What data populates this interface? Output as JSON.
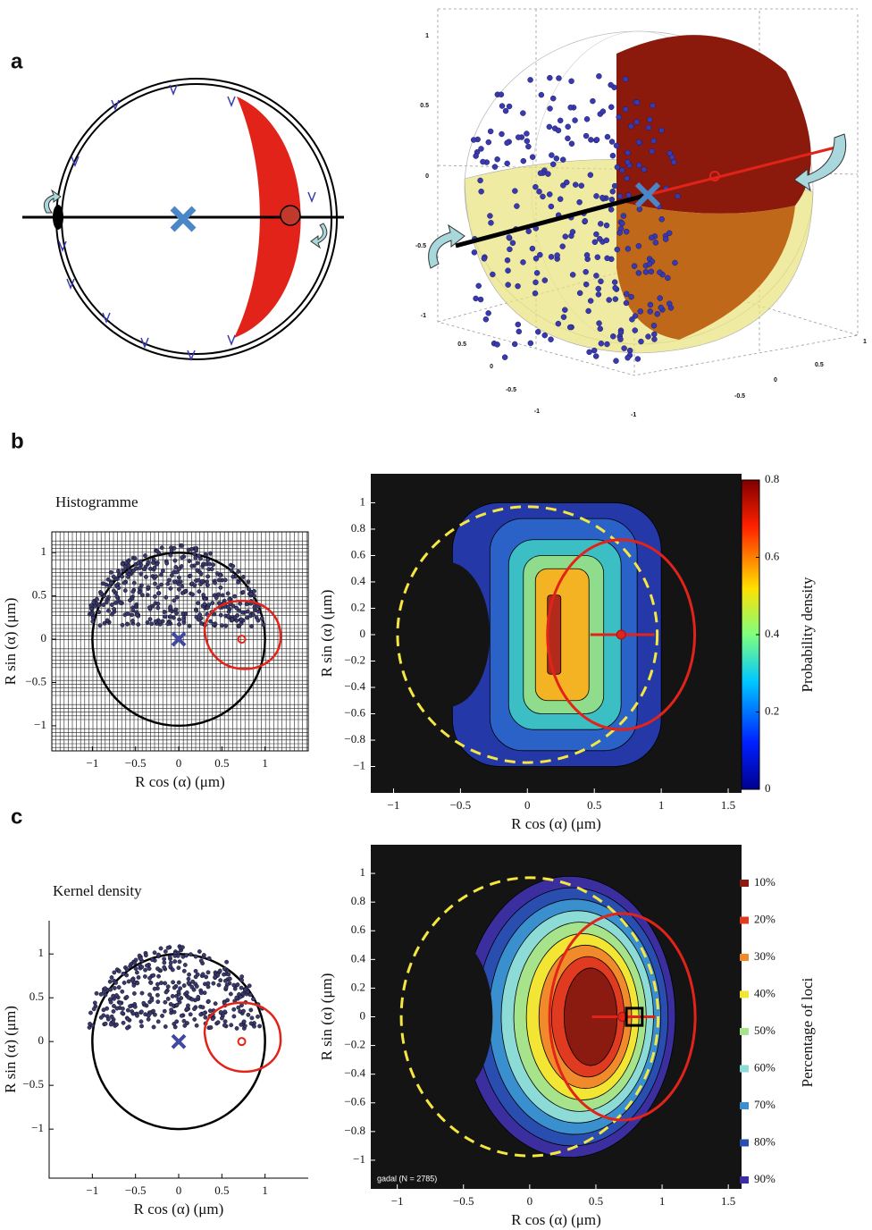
{
  "panels": {
    "a": {
      "label": "a",
      "plot3d": {
        "zticks": [
          1,
          0.5,
          0,
          -0.5,
          -1
        ],
        "yticks": [
          0.5,
          0,
          -0.5,
          -1
        ],
        "xticks": [
          1,
          0.5,
          0,
          -0.5,
          -1
        ]
      }
    },
    "b": {
      "label": "b",
      "left": {
        "title": "Histogramme",
        "xlabel": "R cos (α) (μm)",
        "ylabel": "R sin (α) (μm)",
        "xlim": [
          -1.47,
          1.5
        ],
        "ylim": [
          -1.29,
          1.24
        ],
        "xticks": [
          {
            "value": -1,
            "label": "−1"
          },
          {
            "value": -0.5,
            "label": "−0.5"
          },
          0,
          0.5,
          1
        ],
        "yticks": [
          {
            "value": -1,
            "label": "−1"
          },
          {
            "value": -0.5,
            "label": "−0.5"
          },
          0,
          0.5,
          1
        ]
      },
      "right": {
        "xlabel": "R cos (α) (μm)",
        "ylabel": "R sin (α) (μm)",
        "xlim": [
          -1.17,
          1.6
        ],
        "ylim": [
          -1.2,
          1.22
        ],
        "xticks": [
          {
            "value": -1,
            "label": "−1"
          },
          {
            "value": -0.5,
            "label": "−0.5"
          },
          0,
          0.5,
          1,
          1.5
        ],
        "yticks": [
          {
            "value": -1,
            "label": "−1"
          },
          {
            "value": -0.8,
            "label": "−0.8"
          },
          {
            "value": -0.6,
            "label": "−0.6"
          },
          {
            "value": -0.4,
            "label": "−0.4"
          },
          {
            "value": -0.2,
            "label": "−0.2"
          },
          0,
          0.2,
          0.4,
          0.6,
          0.8,
          1
        ],
        "colorbar": {
          "label": "Probability density",
          "lim": [
            0,
            0.8
          ],
          "ticks": [
            0,
            0.2,
            0.4,
            0.6,
            0.8
          ]
        }
      }
    },
    "c": {
      "label": "c",
      "left": {
        "title": "Kernel density",
        "xlabel": "R cos (α) (μm)",
        "ylabel": "R sin (α) (μm)",
        "xlim": [
          -1.5,
          1.5
        ],
        "ylim": [
          -1.56,
          1.38
        ],
        "xticks": [
          {
            "value": -1,
            "label": "−1"
          },
          {
            "value": -0.5,
            "label": "−0.5"
          },
          0,
          0.5,
          1
        ],
        "yticks": [
          {
            "value": -1,
            "label": "−1"
          },
          {
            "value": -0.5,
            "label": "−0.5"
          },
          0,
          0.5,
          1
        ]
      },
      "right": {
        "xlabel": "R cos (α) (μm)",
        "ylabel": "R sin (α) (μm)",
        "annotation": "gadal (N = 2785)",
        "xlim": [
          -1.2,
          1.6
        ],
        "ylim": [
          -1.2,
          1.2
        ],
        "xticks": [
          {
            "value": -1,
            "label": "−1"
          },
          {
            "value": -0.5,
            "label": "−0.5"
          },
          0,
          0.5,
          1,
          1.5
        ],
        "yticks": [
          {
            "value": -1,
            "label": "−1"
          },
          {
            "value": -0.8,
            "label": "−0.8"
          },
          {
            "value": -0.6,
            "label": "−0.6"
          },
          {
            "value": -0.4,
            "label": "−0.4"
          },
          {
            "value": -0.2,
            "label": "−0.2"
          },
          0,
          0.2,
          0.4,
          0.6,
          0.8,
          1
        ],
        "legend": {
          "title": "Percentage of loci",
          "items": [
            {
              "label": "10%",
              "color": "#8b1a10"
            },
            {
              "label": "20%",
              "color": "#e03a20"
            },
            {
              "label": "30%",
              "color": "#f08a2a"
            },
            {
              "label": "40%",
              "color": "#f2e534"
            },
            {
              "label": "50%",
              "color": "#a6e38a"
            },
            {
              "label": "60%",
              "color": "#8ddbd6"
            },
            {
              "label": "70%",
              "color": "#3a8fcf"
            },
            {
              "label": "80%",
              "color": "#2a4db0"
            },
            {
              "label": "90%",
              "color": "#3b2fa0"
            }
          ]
        }
      }
    }
  }
}
